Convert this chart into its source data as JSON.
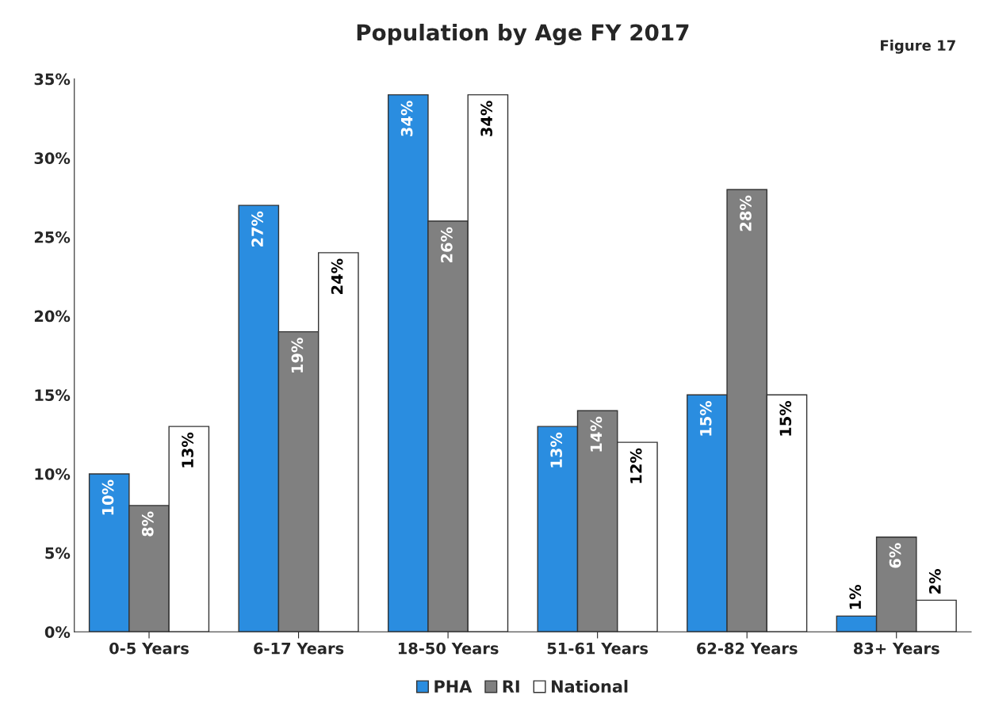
{
  "chart_data": {
    "type": "bar",
    "title": "Population by Age FY 2017",
    "annotations": [
      "Figure 17"
    ],
    "categories": [
      "0-5 Years",
      "6-17 Years",
      "18-50 Years",
      "51-61 Years",
      "62-82 Years",
      "83+ Years"
    ],
    "series": [
      {
        "name": "PHA",
        "color": "#2a8de0",
        "values": [
          10,
          27,
          34,
          13,
          15,
          1
        ],
        "value_labels": [
          "10%",
          "27%",
          "34%",
          "13%",
          "15%",
          "1%"
        ]
      },
      {
        "name": "RI",
        "color": "#808080",
        "values": [
          8,
          19,
          26,
          14,
          28,
          6
        ],
        "value_labels": [
          "8%",
          "19%",
          "26%",
          "14%",
          "28%",
          "6%"
        ]
      },
      {
        "name": "National",
        "color": "#ffffff",
        "values": [
          13,
          24,
          34,
          12,
          15,
          2
        ],
        "value_labels": [
          "13%",
          "24%",
          "34%",
          "12%",
          "15%",
          "2%"
        ]
      }
    ],
    "ylim": [
      0,
      35
    ],
    "yticks": [
      {
        "value": 0,
        "label": "0%"
      },
      {
        "value": 5,
        "label": "5%"
      },
      {
        "value": 10,
        "label": "10%"
      },
      {
        "value": 15,
        "label": "15%"
      },
      {
        "value": 20,
        "label": "20%"
      },
      {
        "value": 25,
        "label": "25%"
      },
      {
        "value": 30,
        "label": "30%"
      },
      {
        "value": 35,
        "label": "35%"
      }
    ],
    "legend": "bottom",
    "grid": false
  }
}
